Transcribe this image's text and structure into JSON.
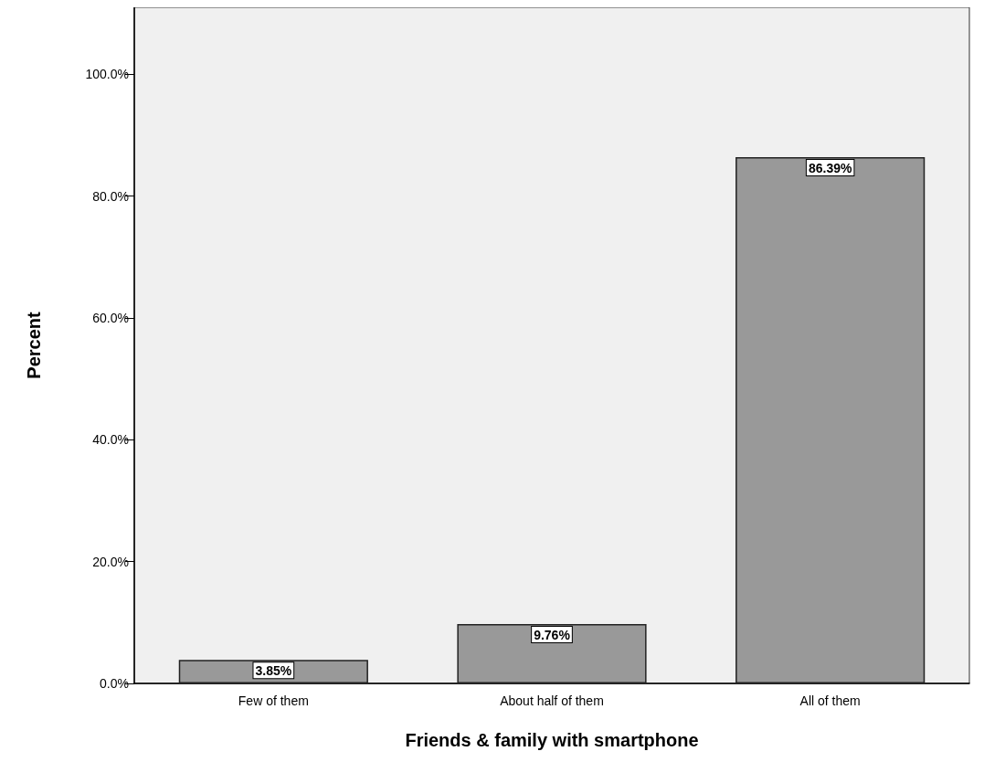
{
  "chart_data": {
    "type": "bar",
    "xlabel": "Friends & family with smartphone",
    "ylabel": "Percent",
    "categories": [
      "Few of them",
      "About half of them",
      "All of them"
    ],
    "values": [
      3.85,
      9.76,
      86.39
    ],
    "value_labels": [
      "3.85%",
      "9.76%",
      "86.39%"
    ],
    "color": "#999999",
    "ylim": [
      0,
      111
    ],
    "yticks": [
      {
        "value": 0,
        "label": "0.0%"
      },
      {
        "value": 20,
        "label": "20.0%"
      },
      {
        "value": 40,
        "label": "40.0%"
      },
      {
        "value": 60,
        "label": "60.0%"
      },
      {
        "value": 80,
        "label": "80.0%"
      },
      {
        "value": 100,
        "label": "100.0%"
      }
    ],
    "grid": false
  }
}
